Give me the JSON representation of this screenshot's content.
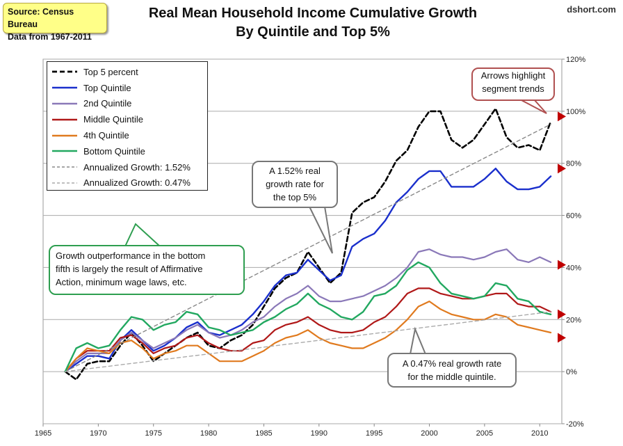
{
  "source_box": {
    "line1": "Source: Census Bureau",
    "line2": "Data from 1967-2011"
  },
  "title": {
    "line1": "Real Mean Household Income Cumulative Growth",
    "line2": "By Quintile and Top 5%"
  },
  "credit": "dshort.com",
  "legend": [
    {
      "label": "Top 5 percent",
      "color": "#000000",
      "style": "dashed-thick"
    },
    {
      "label": "Top Quintile",
      "color": "#1a2fcc",
      "style": "solid"
    },
    {
      "label": "2nd Quintile",
      "color": "#8a78b8",
      "style": "solid"
    },
    {
      "label": "Middle Quintile",
      "color": "#b01818",
      "style": "solid"
    },
    {
      "label": "4th Quintile",
      "color": "#e07a1e",
      "style": "solid"
    },
    {
      "label": "Bottom Quintile",
      "color": "#22a860",
      "style": "solid"
    },
    {
      "label": "Annualized Growth: 1.52%",
      "color": "#888888",
      "style": "dashed-thin"
    },
    {
      "label": "Annualized Growth: 0.47%",
      "color": "#aaaaaa",
      "style": "dashed-thin"
    }
  ],
  "callouts": {
    "arrows": {
      "line1": "Arrows highlight",
      "line2": "segment trends"
    },
    "top5": {
      "line1": "A 1.52% real",
      "line2": "growth rate for",
      "line3": "the top 5%"
    },
    "bottom": {
      "line1": "Growth  outperformance  in the bottom",
      "line2": "fifth is largely the result of Affirmative",
      "line3": "Action, minimum wage laws, etc."
    },
    "middle": {
      "line1": "A 0.47% real growth rate",
      "line2": "for the middle quintile."
    }
  },
  "chart_data": {
    "type": "line",
    "title": "Real Mean Household Income Cumulative Growth By Quintile and Top 5%",
    "xlabel": "",
    "ylabel": "",
    "xlim": [
      1965,
      2012
    ],
    "ylim": [
      -20,
      120
    ],
    "x_ticks": [
      1965,
      1970,
      1975,
      1980,
      1985,
      1990,
      1995,
      2000,
      2005,
      2010
    ],
    "x_tick_labels": [
      "1965",
      "1970",
      "1975",
      "1980",
      "1985",
      "1990",
      "1995",
      "2000",
      "2005",
      "2010"
    ],
    "y_ticks": [
      -20,
      0,
      20,
      40,
      60,
      80,
      100,
      120
    ],
    "y_tick_labels": [
      "-20%",
      "0%",
      "20%",
      "40%",
      "60%",
      "80%",
      "100%",
      "120%"
    ],
    "x": [
      1967,
      1968,
      1969,
      1970,
      1971,
      1972,
      1973,
      1974,
      1975,
      1976,
      1977,
      1978,
      1979,
      1980,
      1981,
      1982,
      1983,
      1984,
      1985,
      1986,
      1987,
      1988,
      1989,
      1990,
      1991,
      1992,
      1993,
      1994,
      1995,
      1996,
      1997,
      1998,
      1999,
      2000,
      2001,
      2002,
      2003,
      2004,
      2005,
      2006,
      2007,
      2008,
      2009,
      2010,
      2011
    ],
    "series": [
      {
        "name": "Top 5 percent",
        "color": "#000000",
        "dash": "7,4",
        "width": 2.6,
        "values": [
          0,
          -3,
          3,
          4,
          4,
          10,
          15,
          10,
          4,
          7,
          10,
          13,
          15,
          10,
          9,
          12,
          14,
          18,
          25,
          32,
          36,
          38,
          46,
          40,
          34,
          38,
          61,
          65,
          67,
          73,
          81,
          85,
          94,
          100,
          100,
          89,
          86,
          89,
          95,
          101,
          90,
          86,
          87,
          85,
          96
        ]
      },
      {
        "name": "Top Quintile",
        "color": "#1a2fcc",
        "dash": "",
        "width": 2.4,
        "values": [
          0,
          3,
          6,
          6,
          5,
          12,
          16,
          12,
          8,
          10,
          13,
          17,
          19,
          15,
          14,
          16,
          18,
          22,
          27,
          33,
          37,
          38,
          43,
          39,
          35,
          37,
          48,
          51,
          53,
          58,
          65,
          69,
          74,
          77,
          77,
          71,
          71,
          71,
          74,
          78,
          73,
          70,
          70,
          71,
          75
        ]
      },
      {
        "name": "2nd Quintile",
        "color": "#8a78b8",
        "dash": "",
        "width": 2.2,
        "values": [
          0,
          4,
          7,
          7,
          7,
          12,
          15,
          12,
          9,
          11,
          13,
          16,
          18,
          15,
          13,
          14,
          16,
          19,
          21,
          25,
          28,
          30,
          33,
          29,
          27,
          27,
          28,
          29,
          31,
          33,
          36,
          40,
          46,
          47,
          45,
          44,
          44,
          43,
          44,
          46,
          47,
          43,
          42,
          44,
          42
        ]
      },
      {
        "name": "Middle Quintile",
        "color": "#b01818",
        "dash": "",
        "width": 2.2,
        "values": [
          0,
          5,
          8,
          8,
          8,
          13,
          14,
          11,
          7,
          9,
          10,
          13,
          14,
          11,
          9,
          8,
          8,
          11,
          12,
          16,
          18,
          19,
          21,
          18,
          16,
          15,
          15,
          16,
          19,
          21,
          25,
          30,
          32,
          32,
          30,
          29,
          28,
          28,
          29,
          30,
          30,
          26,
          25,
          25,
          23
        ]
      },
      {
        "name": "4th Quintile",
        "color": "#e07a1e",
        "dash": "",
        "width": 2.2,
        "values": [
          0,
          5,
          9,
          8,
          7,
          11,
          12,
          9,
          5,
          7,
          8,
          10,
          10,
          7,
          4,
          4,
          4,
          6,
          8,
          11,
          13,
          14,
          16,
          13,
          11,
          10,
          9,
          9,
          11,
          13,
          16,
          20,
          25,
          27,
          24,
          22,
          21,
          20,
          20,
          22,
          21,
          18,
          17,
          16,
          15
        ]
      },
      {
        "name": "Bottom Quintile",
        "color": "#22a860",
        "dash": "",
        "width": 2.4,
        "values": [
          0,
          9,
          11,
          9,
          10,
          16,
          21,
          20,
          16,
          18,
          19,
          23,
          22,
          17,
          16,
          14,
          15,
          16,
          19,
          21,
          24,
          26,
          30,
          26,
          24,
          21,
          20,
          23,
          29,
          30,
          33,
          39,
          42,
          40,
          34,
          30,
          29,
          28,
          29,
          34,
          33,
          28,
          27,
          23,
          22
        ]
      },
      {
        "name": "Annualized Growth: 1.52%",
        "color": "#888888",
        "dash": "5,4",
        "width": 1.4,
        "values": [
          0,
          null,
          null,
          null,
          null,
          null,
          null,
          null,
          null,
          null,
          null,
          null,
          null,
          null,
          null,
          null,
          null,
          null,
          null,
          null,
          null,
          null,
          null,
          null,
          null,
          null,
          null,
          null,
          null,
          null,
          null,
          null,
          null,
          null,
          null,
          null,
          null,
          null,
          null,
          null,
          null,
          null,
          null,
          null,
          95
        ]
      },
      {
        "name": "Annualized Growth: 0.47%",
        "color": "#aaaaaa",
        "dash": "5,4",
        "width": 1.4,
        "values": [
          0,
          null,
          null,
          null,
          null,
          null,
          null,
          null,
          null,
          null,
          null,
          null,
          null,
          null,
          null,
          null,
          null,
          null,
          null,
          null,
          null,
          null,
          null,
          null,
          null,
          null,
          null,
          null,
          null,
          null,
          null,
          null,
          null,
          null,
          null,
          null,
          null,
          null,
          null,
          null,
          null,
          null,
          null,
          null,
          23
        ]
      }
    ],
    "arrows": [
      {
        "series": "Top 5 percent",
        "year": 2012,
        "value": 98,
        "color": "#c00000"
      },
      {
        "series": "Top Quintile",
        "year": 2012,
        "value": 78,
        "color": "#c00000"
      },
      {
        "series": "2nd Quintile",
        "year": 2012,
        "value": 41,
        "color": "#c00000"
      },
      {
        "series": "Middle Quintile",
        "year": 2012,
        "value": 22,
        "color": "#c00000"
      },
      {
        "series": "Bottom Quintile",
        "year": 2012,
        "value": 13,
        "color": "#c00000"
      }
    ]
  }
}
